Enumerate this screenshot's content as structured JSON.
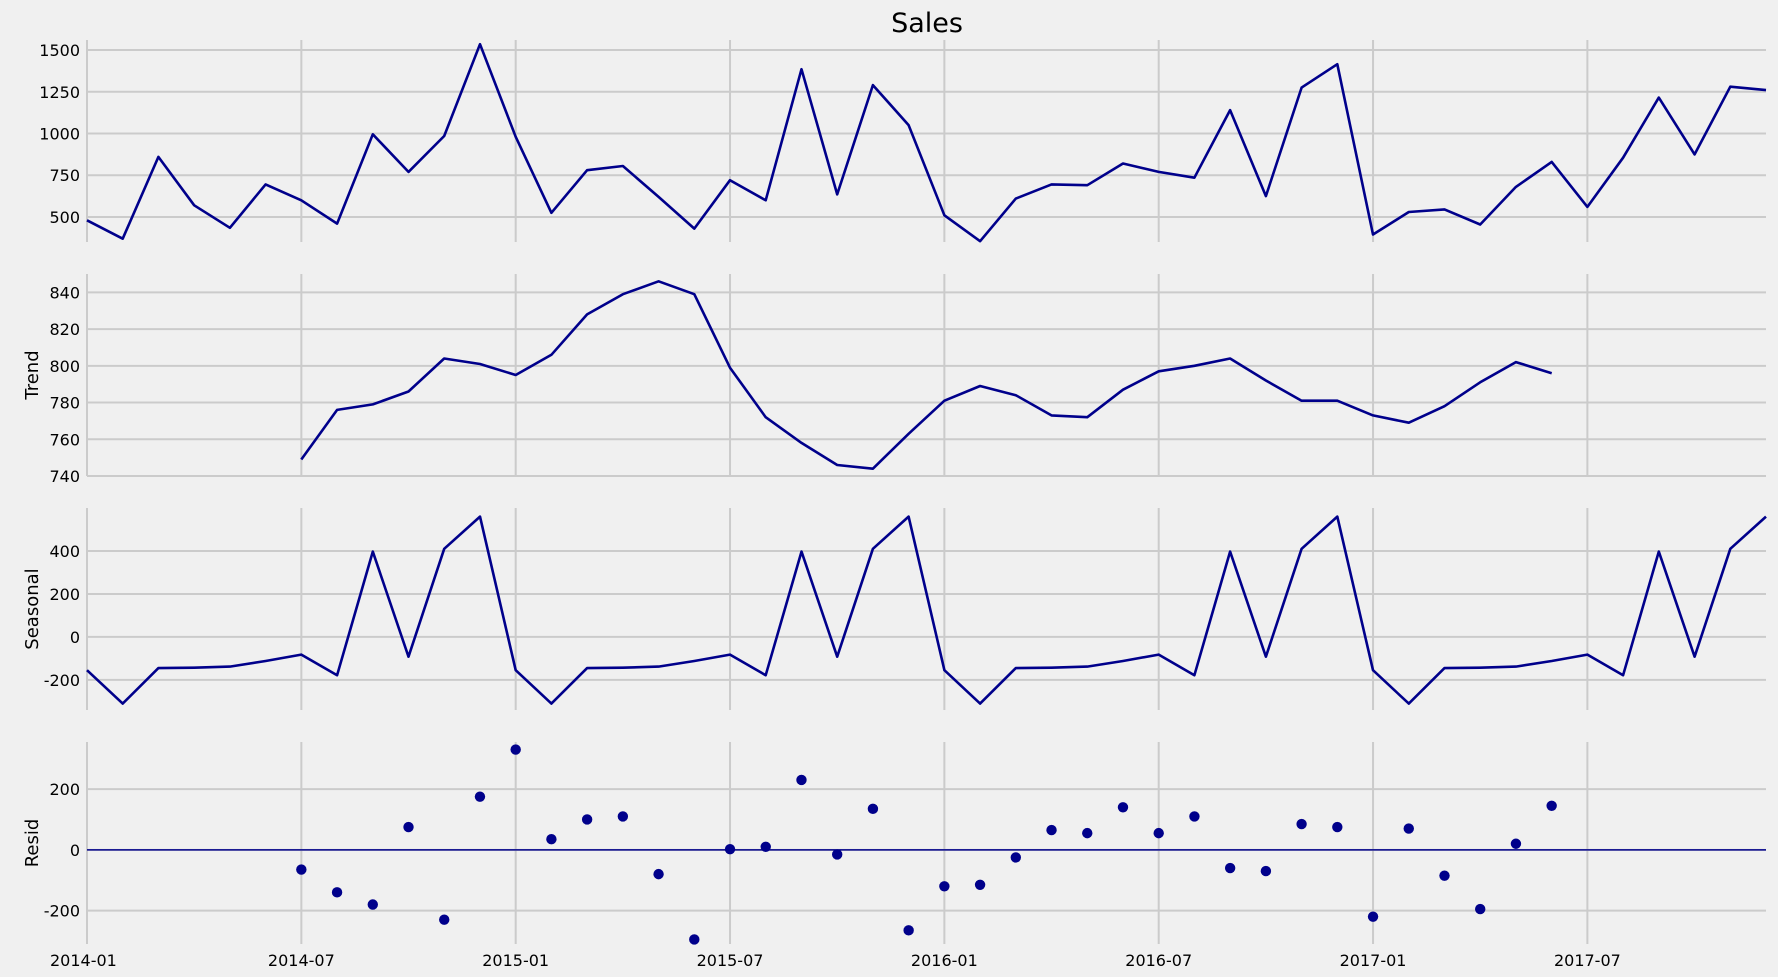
{
  "chart_data": {
    "type": "line",
    "title": "Sales",
    "x": [
      "2014-01",
      "2014-02",
      "2014-03",
      "2014-04",
      "2014-05",
      "2014-06",
      "2014-07",
      "2014-08",
      "2014-09",
      "2014-10",
      "2014-11",
      "2014-12",
      "2015-01",
      "2015-02",
      "2015-03",
      "2015-04",
      "2015-05",
      "2015-06",
      "2015-07",
      "2015-08",
      "2015-09",
      "2015-10",
      "2015-11",
      "2015-12",
      "2016-01",
      "2016-02",
      "2016-03",
      "2016-04",
      "2016-05",
      "2016-06",
      "2016-07",
      "2016-08",
      "2016-09",
      "2016-10",
      "2016-11",
      "2016-12",
      "2017-01",
      "2017-02",
      "2017-03",
      "2017-04",
      "2017-05",
      "2017-06",
      "2017-07",
      "2017-08",
      "2017-09",
      "2017-10",
      "2017-11",
      "2017-12"
    ],
    "x_ticks": [
      "2014-01",
      "2014-07",
      "2015-01",
      "2015-07",
      "2016-01",
      "2016-07",
      "2017-01",
      "2017-07"
    ],
    "line_color": "#00008b",
    "grid": true,
    "panels": [
      {
        "id": "sales",
        "ylabel": "",
        "kind": "line",
        "ylim": [
          350,
          1560
        ],
        "yticks": [
          500,
          750,
          1000,
          1250,
          1500
        ],
        "values": [
          480,
          370,
          860,
          570,
          435,
          695,
          600,
          460,
          995,
          770,
          985,
          1535,
          980,
          525,
          780,
          805,
          620,
          430,
          720,
          600,
          1385,
          635,
          1290,
          1050,
          510,
          355,
          610,
          695,
          690,
          820,
          770,
          735,
          1140,
          625,
          1275,
          1415,
          395,
          530,
          545,
          455,
          680,
          830,
          560,
          855,
          1215,
          875,
          1280,
          1260
        ]
      },
      {
        "id": "trend",
        "ylabel": "Trend",
        "kind": "line",
        "ylim": [
          740,
          850
        ],
        "yticks": [
          740,
          760,
          780,
          800,
          820,
          840
        ],
        "values": [
          null,
          null,
          null,
          null,
          null,
          null,
          749,
          776,
          779,
          786,
          804,
          801,
          795,
          806,
          828,
          839,
          846,
          839,
          799,
          772,
          758,
          746,
          744,
          763,
          781,
          789,
          784,
          773,
          772,
          787,
          797,
          800,
          804,
          792,
          781,
          781,
          773,
          769,
          778,
          791,
          802,
          796,
          null,
          null,
          null,
          null,
          null,
          null
        ]
      },
      {
        "id": "seasonal",
        "ylabel": "Seasonal",
        "kind": "line",
        "ylim": [
          -340,
          600
        ],
        "yticks": [
          -200,
          0,
          200,
          400
        ],
        "values": [
          -155,
          -310,
          -145,
          -143,
          -138,
          -112,
          -82,
          -178,
          397,
          -92,
          410,
          560,
          -155,
          -310,
          -145,
          -143,
          -138,
          -112,
          -82,
          -178,
          397,
          -92,
          410,
          560,
          -155,
          -310,
          -145,
          -143,
          -138,
          -112,
          -82,
          -178,
          397,
          -92,
          410,
          560,
          -155,
          -310,
          -145,
          -143,
          -138,
          -112,
          -82,
          -178,
          397,
          -92,
          410,
          560
        ]
      },
      {
        "id": "resid",
        "ylabel": "Resid",
        "kind": "scatter",
        "ylim": [
          -310,
          355
        ],
        "yticks": [
          -200,
          0,
          200
        ],
        "baseline": 0,
        "values": [
          null,
          null,
          null,
          null,
          null,
          null,
          -65,
          -140,
          -180,
          75,
          -230,
          175,
          330,
          35,
          100,
          110,
          -80,
          -295,
          2,
          10,
          230,
          -15,
          135,
          -265,
          -120,
          -115,
          -25,
          65,
          55,
          140,
          55,
          110,
          -60,
          -70,
          85,
          75,
          -220,
          70,
          -85,
          -195,
          20,
          145,
          null,
          null,
          null,
          null,
          null,
          null
        ]
      }
    ]
  }
}
